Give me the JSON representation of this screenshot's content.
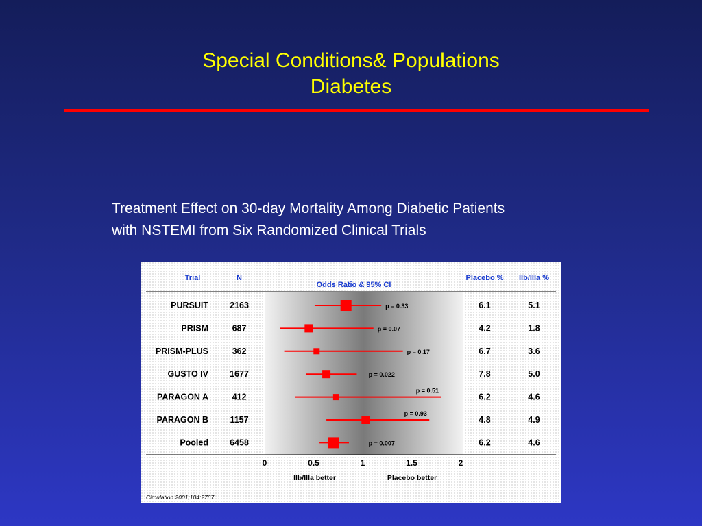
{
  "slide": {
    "title_line1": "Special Conditions& Populations",
    "title_line2": "Diabetes",
    "subtitle_line1": "Treatment Effect on 30-day Mortality Among Diabetic Patients",
    "subtitle_line2": "with NSTEMI from Six Randomized Clinical Trials",
    "citation": "Circulation 2001;104:2767"
  },
  "colors": {
    "title": "#ffff00",
    "rule": "#ff0000",
    "marker": "#ff0000",
    "header_text": "#1a3ccf"
  },
  "chart_data": {
    "type": "forest",
    "headers": {
      "trial": "Trial",
      "n": "N",
      "odds_ratio": "Odds Ratio & 95% CI",
      "placebo": "Placebo %",
      "iib": "IIb/IIIa %"
    },
    "xlim": [
      0,
      2
    ],
    "xticks": [
      "0",
      "0.5",
      "1",
      "1.5",
      "2"
    ],
    "x_left_label": "IIb/IIIa better",
    "x_right_label": "Placebo better",
    "rows": [
      {
        "trial": "PURSUIT",
        "n": "2163",
        "or": 0.83,
        "lo": 0.51,
        "hi": 1.19,
        "p": "p = 0.33",
        "placebo": "6.1",
        "iib": "5.1",
        "weight": 3
      },
      {
        "trial": "PRISM",
        "n": "687",
        "or": 0.45,
        "lo": 0.16,
        "hi": 1.11,
        "p": "p = 0.07",
        "placebo": "4.2",
        "iib": "1.8",
        "weight": 2
      },
      {
        "trial": "PRISM-PLUS",
        "n": "362",
        "or": 0.53,
        "lo": 0.2,
        "hi": 1.41,
        "p": "p = 0.17",
        "placebo": "6.7",
        "iib": "3.6",
        "weight": 1
      },
      {
        "trial": "GUSTO IV",
        "n": "1677",
        "or": 0.63,
        "lo": 0.42,
        "hi": 0.94,
        "p": "p = 0.022",
        "placebo": "7.8",
        "iib": "5.0",
        "weight": 2
      },
      {
        "trial": "PARAGON A",
        "n": "412",
        "or": 0.73,
        "lo": 0.31,
        "hi": 1.8,
        "p": "p = 0.51",
        "placebo": "6.2",
        "iib": "4.6",
        "weight": 1
      },
      {
        "trial": "PARAGON B",
        "n": "1157",
        "or": 1.03,
        "lo": 0.63,
        "hi": 1.68,
        "p": "p = 0.93",
        "placebo": "4.8",
        "iib": "4.9",
        "weight": 2
      },
      {
        "trial": "Pooled",
        "n": "6458",
        "or": 0.7,
        "lo": 0.56,
        "hi": 0.86,
        "p": "p = 0.007",
        "placebo": "6.2",
        "iib": "4.6",
        "weight": 3
      }
    ]
  }
}
